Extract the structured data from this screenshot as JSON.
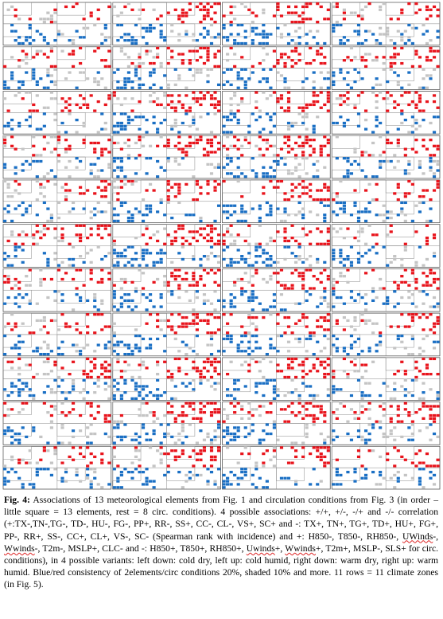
{
  "figure": {
    "rows": 11,
    "cols": 4,
    "colors": {
      "warm": "#e8141c",
      "cold": "#1a6fc4",
      "weak": "#c4c4c4",
      "panel_border": "#555555",
      "divider": "#8a8a8a"
    }
  },
  "caption": {
    "label": "Fig. 4:",
    "part1": " Associations of 13 meteorological elements from Fig. 1 and circulation conditions from Fig. 3 (in order – little square = 13 elements, rest = 8 circ. conditions). 4 possible associations: +/+, +/-, -/+ and -/- correlation (+:TX-,TN-,TG-, TD-, HU-, FG-, PP+, RR-, SS+, CC-, CL-, VS+, SC+ and -: TX+, TN+, TG+, TD+, HU+, FG+, PP-, RR+, SS-, CC+, CL+, VS-, SC- (Spearman rank with incidence) and +: H850-, T850-, RH850-, ",
    "sq1": "UWinds",
    "part2": "-, ",
    "sq2": "Wwinds",
    "part3": "-, T2m-, MSLP+, CLC- and -: H850+, T850+, RH850+, ",
    "sq3": "Uwinds",
    "part4": "+, ",
    "sq4": "Wwinds",
    "part5": "+, T2m+, MSLP-, SLS+ for circ. conditions),  in 4 possible variants: left down: cold dry, left up: cold humid, right down: warm dry, right up: warm humid. Blue/red consistency of 2elements/circ conditions 20%, shaded 10% and more. 11 rows = 11 climate zones (in ",
    "ref": "Fig. 5",
    "part6": ")."
  }
}
